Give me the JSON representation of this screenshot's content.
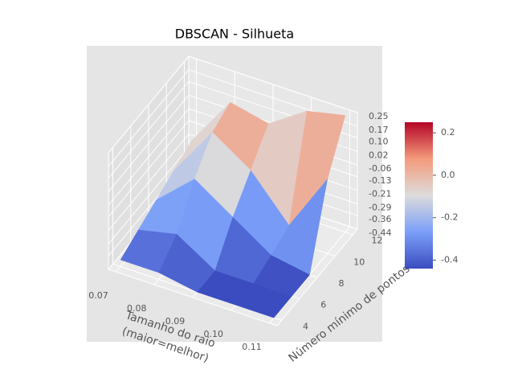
{
  "chart_data": {
    "type": "surface3d",
    "title": "DBSCAN - Silhueta",
    "xlabel": [
      "Tamanho do raio",
      "(maior=melhor)"
    ],
    "ylabel": "Número mínimo de pontos",
    "x": [
      0.07,
      0.08,
      0.09,
      0.1,
      0.11
    ],
    "y": [
      4,
      6,
      8,
      10,
      12
    ],
    "z": [
      [
        -0.4,
        -0.4,
        -0.44,
        -0.44,
        -0.44
      ],
      [
        -0.35,
        -0.3,
        -0.44,
        -0.44,
        -0.44
      ],
      [
        -0.3,
        -0.1,
        -0.25,
        -0.4,
        -0.44
      ],
      [
        -0.25,
        0.05,
        -0.1,
        -0.35,
        0.0
      ],
      [
        -0.2,
        0.1,
        0.05,
        0.2,
        0.25
      ]
    ],
    "colormap": "coolwarm",
    "xlim": [
      0.068,
      0.112
    ],
    "ylim": [
      3.5,
      12.5
    ],
    "zlim": [
      -0.44,
      0.25
    ],
    "xticks": [
      0.07,
      0.08,
      0.09,
      {
        "value": 0.1,
        "label": "0.10"
      },
      0.11
    ],
    "yticks": [
      4,
      6,
      8,
      10,
      12
    ],
    "zticks": [
      -0.44,
      -0.36,
      -0.29,
      -0.21,
      -0.13,
      -0.06,
      0.02,
      {
        "value": 0.1,
        "label": "0.10"
      },
      0.17,
      0.25
    ],
    "colorbar_ticks": [
      -0.4,
      -0.2,
      {
        "value": 0,
        "label": "0.0"
      },
      0.2
    ],
    "grid": true
  }
}
